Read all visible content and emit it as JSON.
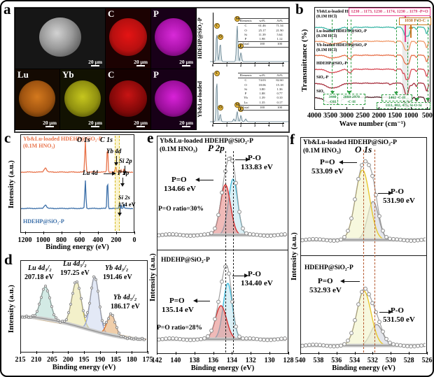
{
  "panel_letters": {
    "a": "a",
    "b": "b",
    "c": "c",
    "d": "d",
    "e": "e",
    "f": "f"
  },
  "panel_a": {
    "map_labels": [
      "C",
      "P",
      "Lu",
      "Yb",
      "C",
      "P"
    ],
    "scale_label": "20 μm",
    "row_labels": [
      "HDEHP@SiO₂-P",
      "Yb&Lu-loaded"
    ],
    "eds_peak_labels": [
      "C",
      "O",
      "Si",
      "P"
    ],
    "eds_table_header": [
      "Elements",
      "wt%",
      "At%"
    ],
    "eds_top_table": [
      [
        "C",
        "61.46",
        "71.34"
      ],
      [
        "O",
        "25.17",
        "21.90"
      ],
      [
        "Si",
        "11.39",
        "5.64"
      ],
      [
        "P",
        "1.98",
        "1.12"
      ],
      [
        "Total",
        "100",
        "100"
      ]
    ],
    "eds_bottom_table": [
      [
        "C",
        "74.03",
        "82.60"
      ],
      [
        "O",
        "18.06",
        "15.18"
      ],
      [
        "Si",
        "3.80",
        "1.36"
      ],
      [
        "P",
        "1.88",
        "0.77"
      ],
      [
        "Yb",
        "1.39",
        "0.10"
      ],
      [
        "Lu",
        "1.35",
        "0.17"
      ],
      [
        "Total",
        "100",
        "100"
      ]
    ]
  },
  "chart_data": {
    "ftir": {
      "type": "line",
      "xlabel": "Wave number (cm⁻¹)",
      "ylabel": "Transmittance (%)",
      "x_ticks": [
        "4000",
        "3500",
        "3000",
        "2500",
        "2000",
        "1500",
        "1000",
        "500"
      ],
      "x_range": [
        4000,
        400
      ],
      "band": [
        1250,
        1020
      ],
      "annotations": {
        "peak_shift": "1230→1173, 1230→1174, 1230→1179  -P=O",
        "poc": "1030 P-O-C",
        "oh1": "3440",
        "oh2": "-OH",
        "ch1a": "2860-2970",
        "ch1b": "-C-H",
        "ch2": "1462 -C-H",
        "sio": "1111, 802, 475, Si-O-Si"
      },
      "curves": [
        {
          "label": "Yb&Lu-loaded HDEHP@SiO₂-P",
          "label2": "(0.1M HCl)",
          "color": "#3eb8a8",
          "offset": 28,
          "dips": [
            [
              3440,
              170,
              4
            ],
            [
              2925,
              50,
              4
            ],
            [
              2860,
              35,
              2.5
            ],
            [
              1462,
              22,
              2.5
            ],
            [
              1230,
              25,
              3
            ],
            [
              1173,
              20,
              5
            ],
            [
              1111,
              50,
              13
            ],
            [
              1030,
              30,
              8
            ],
            [
              802,
              20,
              3.5
            ],
            [
              475,
              35,
              9
            ]
          ]
        },
        {
          "label": "Lu-loaded HDEHP@SiO₂-P",
          "label2": "(0.1M HCl)",
          "color": "#f09a6a",
          "offset": 48,
          "dips": [
            [
              3440,
              170,
              4
            ],
            [
              2925,
              50,
              4
            ],
            [
              2860,
              35,
              2.5
            ],
            [
              1462,
              22,
              2.5
            ],
            [
              1230,
              25,
              3
            ],
            [
              1174,
              20,
              5
            ],
            [
              1111,
              50,
              13
            ],
            [
              1030,
              30,
              8
            ],
            [
              802,
              20,
              3.5
            ],
            [
              475,
              35,
              9
            ]
          ]
        },
        {
          "label": "Yb-loaded HDEHP@SiO₂-P",
          "label2": "(0.1M HCl)",
          "color": "#e8714a",
          "offset": 68,
          "dips": [
            [
              3440,
              170,
              4
            ],
            [
              2925,
              50,
              4
            ],
            [
              2860,
              35,
              2.5
            ],
            [
              1462,
              22,
              2.5
            ],
            [
              1230,
              25,
              3
            ],
            [
              1179,
              20,
              5
            ],
            [
              1111,
              50,
              13
            ],
            [
              1030,
              30,
              8
            ],
            [
              802,
              20,
              3.5
            ],
            [
              475,
              35,
              9
            ]
          ]
        },
        {
          "label": "HDEHP@SiO₂-P",
          "color": "#d84a55",
          "offset": 88,
          "dips": [
            [
              3440,
              170,
              5
            ],
            [
              2925,
              50,
              4
            ],
            [
              2860,
              35,
              2.5
            ],
            [
              1462,
              22,
              2.5
            ],
            [
              1230,
              22,
              5
            ],
            [
              1111,
              50,
              15
            ],
            [
              1030,
              30,
              9
            ],
            [
              802,
              20,
              3.5
            ],
            [
              475,
              35,
              10
            ]
          ]
        },
        {
          "label": "SiO₂-P",
          "color": "#a83240",
          "offset": 108,
          "dips": [
            [
              3440,
              200,
              7
            ],
            [
              1630,
              35,
              2
            ],
            [
              1111,
              60,
              18
            ],
            [
              950,
              25,
              3
            ],
            [
              802,
              22,
              5
            ],
            [
              475,
              38,
              11
            ]
          ]
        },
        {
          "label": "SiO₂",
          "color": "#55242c",
          "offset": 128,
          "dips": [
            [
              3440,
              220,
              9
            ],
            [
              1630,
              35,
              2.5
            ],
            [
              1111,
              62,
              16
            ],
            [
              950,
              25,
              3
            ],
            [
              802,
              22,
              5.5
            ],
            [
              475,
              38,
              12
            ]
          ]
        }
      ]
    },
    "survey": {
      "type": "line",
      "xlabel": "Binding energy (eV)",
      "ylabel": "Intensity (a.u.)",
      "x_ticks": [
        "1200",
        "1000",
        "800",
        "600",
        "400",
        "200",
        "0"
      ],
      "x_range": [
        1250,
        0
      ],
      "labels": {
        "s1a": "Yb&Lu-loaded HDEHP@SiO₂-P",
        "s1b": "(0.1M HNO₃)",
        "s2": "HDEHP@SiO₂-P",
        "o1s": "O 1s",
        "c1s": "C 1s",
        "yb4d": "Yb 4d",
        "si2p": "Si 2p",
        "lu4d": "Lu 4d",
        "p2p": "P 2p",
        "si2s": "Si 2s",
        "si2s_ev": "154 eV"
      },
      "curves": [
        {
          "color": "#e8734a",
          "offset": 53,
          "peaks": [
            [
              978,
              14,
              6
            ],
            [
              532,
              6,
              45
            ],
            [
              285,
              5,
              40
            ],
            [
              199,
              3,
              5
            ],
            [
              190,
              4,
              8
            ],
            [
              154,
              3.5,
              4
            ],
            [
              134,
              3,
              4
            ],
            [
              103,
              3.5,
              5
            ]
          ]
        },
        {
          "color": "#3a6ea8",
          "offset": 105,
          "peaks": [
            [
              978,
              14,
              5
            ],
            [
              532,
              6,
              40
            ],
            [
              285,
              5,
              45
            ],
            [
              154,
              3.5,
              6
            ],
            [
              134,
              3,
              5
            ],
            [
              103,
              3.5,
              7
            ]
          ]
        }
      ]
    },
    "lu_yb_4d": {
      "type": "area",
      "xlabel": "Binding energy (eV)",
      "ylabel": "Intensity (a.u.)",
      "x_ticks": [
        "215",
        "210",
        "205",
        "200",
        "195",
        "190",
        "185",
        "180",
        "175"
      ],
      "x_range": [
        215,
        175
      ],
      "baseline": [
        80,
        112
      ],
      "components": [
        {
          "name": "Lu 4d₃/₂",
          "ev_label": "207.18 eV",
          "c": 207.18,
          "s": 1.5,
          "a": 46,
          "color": "#58b49e",
          "fill": "rgba(130,195,180,0.35)"
        },
        {
          "name": "Lu 4d₅/₂",
          "ev_label": "197.25 eV",
          "c": 197.25,
          "s": 1.5,
          "a": 64,
          "color": "#cfc04a",
          "fill": "rgba(232,226,150,0.5)"
        },
        {
          "name": "Yb 4d₃/₂",
          "ev_label": "191.46 eV",
          "c": 191.46,
          "s": 1.35,
          "a": 78,
          "color": "#96a4d4",
          "fill": "rgba(200,212,238,0.5)"
        },
        {
          "name": "Yb 4d₅/₂",
          "ev_label": "186.17 eV",
          "c": 186.17,
          "s": 1.3,
          "a": 30,
          "color": "#dd7730",
          "fill": "rgba(228,165,100,0.55)"
        }
      ]
    },
    "p2p": {
      "type": "area",
      "title1": "Yb&Lu-loaded HDEHP@SiO₂-P",
      "title2": "(0.1M HNO₃)",
      "species": "P 2p",
      "xlabel": "Binding energy (eV)",
      "ylabel": "Intensity (a.u.)",
      "x_ticks": [
        "142",
        "140",
        "138",
        "136",
        "134",
        "132",
        "130",
        "128"
      ],
      "x_range": [
        142,
        128
      ],
      "dashed_ev": [
        134.66,
        133.83
      ],
      "top": {
        "po_label": "P-O",
        "po_ev": "133.83 eV",
        "peq_label": "P=O",
        "peq_ev": "134.66 eV",
        "ratio": "P=O ratio=30%",
        "baseline": 141,
        "components": [
          {
            "c": 133.83,
            "s": 0.5,
            "a": 80,
            "color": "#45bede",
            "fill": "rgba(195,230,240,0.6)"
          },
          {
            "c": 134.66,
            "s": 0.55,
            "a": 72,
            "color": "#d63434",
            "fill": "rgba(228,130,125,0.55)"
          }
        ]
      },
      "bottom": {
        "sample": "HDEHP@SiO₂-P",
        "po_label": "P-O",
        "po_ev": "134.40 eV",
        "peq_label": "P=O",
        "peq_ev": "135.14 eV",
        "ratio": "P=O ratio=28%",
        "baseline": 127,
        "components": [
          {
            "c": 134.4,
            "s": 0.5,
            "a": 80,
            "color": "#45bede",
            "fill": "rgba(195,230,240,0.6)"
          },
          {
            "c": 135.14,
            "s": 0.6,
            "a": 48,
            "color": "#d63434",
            "fill": "rgba(228,130,125,0.55)"
          }
        ]
      }
    },
    "o1s": {
      "type": "area",
      "title1": "Yb&Lu-loaded HDEHP@SiO₂-P",
      "title2": "(0.1M HNO₃)",
      "species": "O 1s",
      "xlabel": "Binding energy (eV)",
      "ylabel": "Intensity (a.u.)",
      "x_ticks": [
        "540",
        "538",
        "536",
        "534",
        "532",
        "530",
        "528",
        "526"
      ],
      "x_range": [
        540,
        526
      ],
      "dashed_ev": [
        533.05,
        531.8
      ],
      "top": {
        "peq_label": "P=O",
        "peq_ev": "533.09 eV",
        "po_label": "P-O",
        "po_ev": "531.90 eV",
        "baseline": 146,
        "components": [
          {
            "c": 531.9,
            "s": 0.62,
            "a": 55,
            "color": "#9a9a9a",
            "fill": "rgba(205,210,220,0.55)"
          },
          {
            "c": 533.09,
            "s": 0.8,
            "a": 100,
            "color": "#e8c830",
            "fill": "rgba(243,244,205,0.65)"
          }
        ]
      },
      "bottom": {
        "sample": "HDEHP@SiO₂-P",
        "peq_label": "P=O",
        "peq_ev": "532.93 eV",
        "po_label": "P-O",
        "po_ev": "531.50 eV",
        "baseline": 128,
        "components": [
          {
            "c": 531.5,
            "s": 0.68,
            "a": 30,
            "color": "#9a9a9a",
            "fill": "rgba(205,210,220,0.55)"
          },
          {
            "c": 532.93,
            "s": 0.8,
            "a": 78,
            "color": "#e8c830",
            "fill": "rgba(243,244,205,0.65)"
          }
        ]
      }
    },
    "eds_top": {
      "type": "line",
      "x_range": [
        -0.2,
        5.4
      ],
      "x_ticks": [
        "0",
        "1",
        "2",
        "3",
        "4",
        "5"
      ],
      "peaks": [
        [
          0.28,
          0.045,
          42
        ],
        [
          0.53,
          0.05,
          26
        ],
        [
          1.74,
          0.05,
          52
        ],
        [
          2.01,
          0.05,
          13
        ]
      ]
    },
    "eds_bottom": {
      "type": "line",
      "x_range": [
        -0.2,
        5.4
      ],
      "x_ticks": [
        "0",
        "1",
        "2",
        "3",
        "4",
        "5"
      ],
      "peaks": [
        [
          0.28,
          0.045,
          60
        ],
        [
          0.53,
          0.05,
          11
        ],
        [
          1.5,
          0.05,
          4
        ],
        [
          1.74,
          0.05,
          15
        ],
        [
          2.01,
          0.05,
          9
        ],
        [
          2.35,
          0.06,
          4
        ]
      ]
    }
  }
}
